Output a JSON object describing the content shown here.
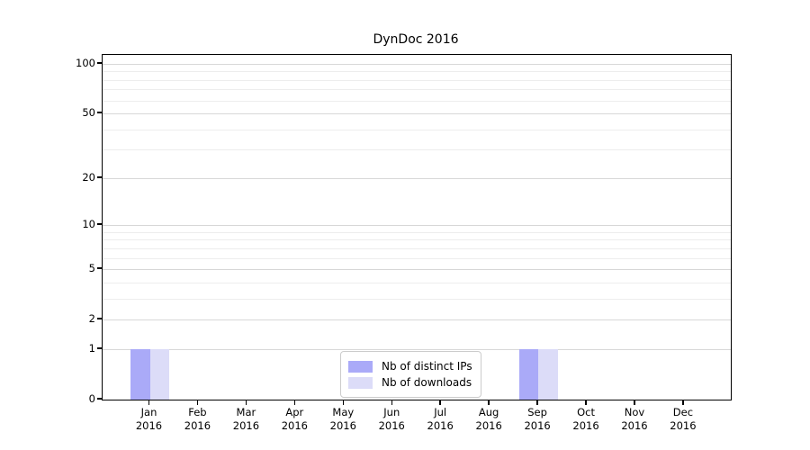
{
  "chart_data": {
    "type": "bar",
    "title": "DynDoc 2016",
    "categories": [
      "Jan 2016",
      "Feb 2016",
      "Mar 2016",
      "Apr 2016",
      "May 2016",
      "Jun 2016",
      "Jul 2016",
      "Aug 2016",
      "Sep 2016",
      "Oct 2016",
      "Nov 2016",
      "Dec 2016"
    ],
    "series": [
      {
        "name": "Nb of distinct IPs",
        "color": "#aaaaf8",
        "values": [
          1,
          0,
          0,
          0,
          0,
          0,
          0,
          0,
          1,
          0,
          0,
          0
        ]
      },
      {
        "name": "Nb of downloads",
        "color": "#dcdcf8",
        "values": [
          1,
          0,
          0,
          0,
          0,
          0,
          0,
          0,
          1,
          0,
          0,
          0
        ]
      }
    ],
    "yscale": "log1p",
    "ylim": [
      0,
      113
    ],
    "y_major_ticks": [
      0,
      1,
      2,
      5,
      10,
      20,
      50,
      100
    ],
    "y_minor_ticks": [
      3,
      4,
      6,
      7,
      8,
      9,
      30,
      40,
      60,
      70,
      80,
      90
    ],
    "xlabel": "",
    "ylabel": "",
    "grid": true,
    "legend_position": "lower center",
    "colors": {
      "grid_major": "#d7d7d7",
      "grid_minor": "#ededed",
      "spine": "#000000",
      "background": "#ffffff"
    }
  }
}
